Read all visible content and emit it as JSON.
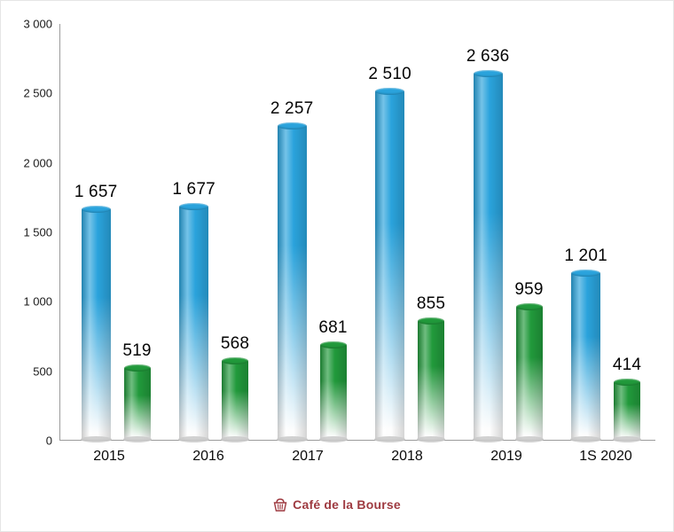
{
  "chart_data": {
    "type": "bar",
    "title": "",
    "categories": [
      "2015",
      "2016",
      "2017",
      "2018",
      "2019",
      "1S 2020"
    ],
    "series": [
      {
        "name": "blue-series",
        "color": "#2AA3DC",
        "values": [
          1657,
          1677,
          2257,
          2510,
          2636,
          1201
        ],
        "labels": [
          "1 657",
          "1 677",
          "2 257",
          "2 510",
          "2 636",
          "1 201"
        ]
      },
      {
        "name": "green-series",
        "color": "#21993B",
        "values": [
          519,
          568,
          681,
          855,
          959,
          414
        ],
        "labels": [
          "519",
          "568",
          "681",
          "855",
          "959",
          "414"
        ]
      }
    ],
    "ylim": [
      0,
      3000
    ],
    "y_ticks": [
      {
        "label": "3 000",
        "value": 3000
      },
      {
        "label": "2 500",
        "value": 2500
      },
      {
        "label": "2 000",
        "value": 2000
      },
      {
        "label": "1 500",
        "value": 1500
      },
      {
        "label": "1 000",
        "value": 1000
      },
      {
        "label": "500",
        "value": 500
      },
      {
        "label": "0",
        "value": 0
      }
    ],
    "grid": false,
    "legend": "none"
  },
  "footer": {
    "brand": "Café de la Bourse",
    "brand_color": "#9E3A40"
  }
}
